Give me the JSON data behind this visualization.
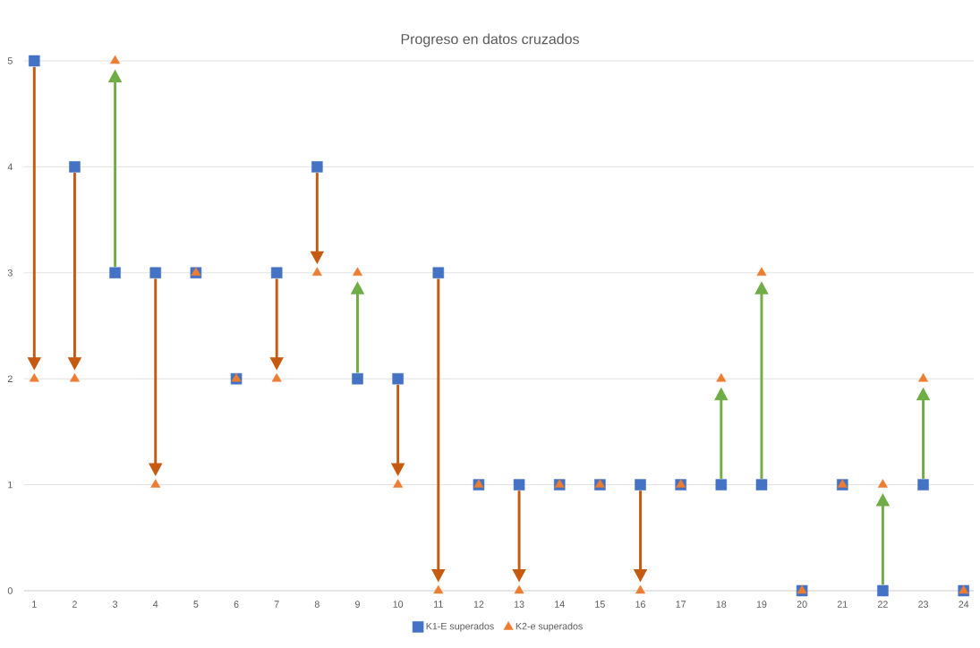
{
  "chart_data": {
    "type": "scatter",
    "title": "Progreso en datos cruzados",
    "categories": [
      "1",
      "2",
      "3",
      "4",
      "5",
      "6",
      "7",
      "8",
      "9",
      "10",
      "11",
      "12",
      "13",
      "14",
      "15",
      "16",
      "17",
      "18",
      "19",
      "20",
      "21",
      "22",
      "23",
      "24"
    ],
    "series": [
      {
        "name": "K1-E superados",
        "color": "#4472c4",
        "marker": "square",
        "values": [
          5,
          4,
          3,
          3,
          3,
          2,
          3,
          4,
          2,
          2,
          3,
          1,
          1,
          1,
          1,
          1,
          1,
          1,
          1,
          0,
          1,
          0,
          1,
          0
        ]
      },
      {
        "name": "K2-e superados",
        "color": "#ed7d31",
        "marker": "triangle",
        "values": [
          2,
          2,
          5,
          1,
          3,
          2,
          2,
          3,
          3,
          1,
          0,
          1,
          0,
          1,
          1,
          0,
          1,
          2,
          3,
          0,
          1,
          1,
          2,
          0
        ]
      }
    ],
    "ylim": [
      0,
      5
    ],
    "yticks": [
      0,
      1,
      2,
      3,
      4,
      5
    ],
    "grid": "y",
    "legend": "bottom"
  }
}
